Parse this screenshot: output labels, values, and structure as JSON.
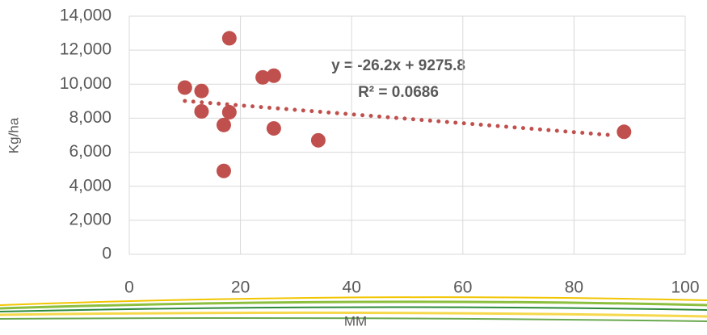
{
  "chart_data": {
    "type": "scatter",
    "x_label": "MM",
    "y_label": "Kg/ha",
    "x": [
      10,
      13,
      13,
      17,
      17,
      18,
      18,
      24,
      26,
      26,
      34,
      89
    ],
    "series": [
      {
        "name": "Kg/ha",
        "color": "#c0504d",
        "values": [
          9800,
          9600,
          8400,
          7600,
          4900,
          12700,
          8350,
          10400,
          10500,
          7400,
          6700,
          7200
        ]
      }
    ],
    "trendline": {
      "equation": "y = -26.2x + 9275.8",
      "r_squared": "R² = 0.0686",
      "slope": -26.2,
      "intercept": 9275.8,
      "color": "#c0504d"
    },
    "xlim": [
      0,
      100
    ],
    "xticks": [
      0,
      20,
      40,
      60,
      80,
      100
    ],
    "ylim": [
      0,
      14000
    ],
    "yticks": [
      0,
      {
        "value": 2000,
        "label": "2,000"
      },
      {
        "value": 4000,
        "label": "4,000"
      },
      {
        "value": 6000,
        "label": "6,000"
      },
      {
        "value": 8000,
        "label": "8,000"
      },
      {
        "value": 10000,
        "label": "10,000"
      },
      {
        "value": 12000,
        "label": "12,000"
      },
      {
        "value": 14000,
        "label": "14,000"
      }
    ],
    "grid": true
  }
}
